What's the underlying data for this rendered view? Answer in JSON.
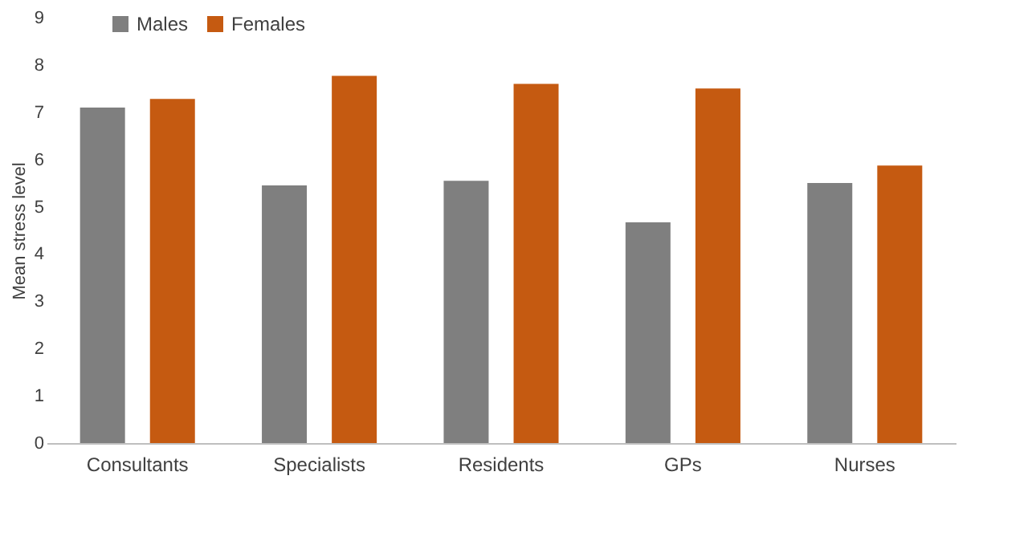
{
  "chart_data": {
    "type": "bar",
    "ylabel": "Mean stress level",
    "categories": [
      "Consultants",
      "Specialists",
      "Residents",
      "GPs",
      "Nurses"
    ],
    "series": [
      {
        "name": "Males",
        "color": "#7f7f7f",
        "values": [
          7.1,
          5.45,
          5.55,
          4.67,
          5.5
        ]
      },
      {
        "name": "Females",
        "color": "#c55a11",
        "values": [
          7.28,
          7.77,
          7.6,
          7.5,
          5.87
        ]
      }
    ],
    "ylim": [
      0,
      9
    ],
    "yticks": [
      0,
      1,
      2,
      3,
      4,
      5,
      6,
      7,
      8,
      9
    ],
    "grid": false,
    "legend": "top left"
  }
}
